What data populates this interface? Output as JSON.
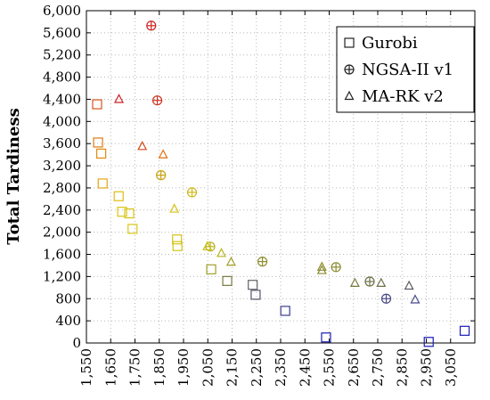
{
  "chart_data": {
    "type": "scatter",
    "title": "",
    "xlabel": "",
    "ylabel": "Total Tardiness",
    "xlim": [
      1550,
      3150
    ],
    "ylim": [
      0,
      6000
    ],
    "x_ticks": [
      1550,
      1650,
      1750,
      1850,
      1950,
      2050,
      2150,
      2250,
      2350,
      2450,
      2550,
      2650,
      2750,
      2850,
      2950,
      3050
    ],
    "y_ticks": [
      0,
      400,
      800,
      1200,
      1600,
      2000,
      2400,
      2800,
      3200,
      3600,
      4000,
      4400,
      4800,
      5200,
      5600,
      6000
    ],
    "x_tick_labels": [
      "1,550",
      "1,650",
      "1,750",
      "1,850",
      "1,950",
      "2,050",
      "2,150",
      "2,250",
      "2,350",
      "2,450",
      "2,550",
      "2,650",
      "2,750",
      "2,850",
      "2,950",
      "3,050"
    ],
    "y_tick_labels": [
      "0",
      "400",
      "800",
      "1,200",
      "1,600",
      "2,000",
      "2,400",
      "2,800",
      "3,200",
      "3,600",
      "4,000",
      "4,400",
      "4,800",
      "5,200",
      "5,600",
      "6,000"
    ],
    "grid": true,
    "legend": {
      "position": "top-right",
      "marker_color": "#222222"
    },
    "color_scale": [
      "#cc2222",
      "#e07a10",
      "#d8c410",
      "#8a8a28",
      "#555555",
      "#1a1ab8"
    ],
    "series": [
      {
        "name": "Gurobi",
        "marker": "square",
        "points": [
          {
            "x": 1594,
            "y": 4310,
            "color": "#d6541c"
          },
          {
            "x": 1598,
            "y": 3620,
            "color": "#e07a10"
          },
          {
            "x": 1611,
            "y": 3420,
            "color": "#e08a10"
          },
          {
            "x": 1617,
            "y": 2880,
            "color": "#e2a812"
          },
          {
            "x": 1683,
            "y": 2650,
            "color": "#e0bd14"
          },
          {
            "x": 1697,
            "y": 2370,
            "color": "#d8c410"
          },
          {
            "x": 1726,
            "y": 2340,
            "color": "#d8c412"
          },
          {
            "x": 1740,
            "y": 2060,
            "color": "#d8c814"
          },
          {
            "x": 1923,
            "y": 1870,
            "color": "#d4c416"
          },
          {
            "x": 1925,
            "y": 1750,
            "color": "#d2c218"
          },
          {
            "x": 2064,
            "y": 1330,
            "color": "#a0a028"
          },
          {
            "x": 2130,
            "y": 1120,
            "color": "#7a7a40"
          },
          {
            "x": 2235,
            "y": 1050,
            "color": "#666666"
          },
          {
            "x": 2247,
            "y": 870,
            "color": "#555570"
          },
          {
            "x": 2369,
            "y": 580,
            "color": "#3a3a90"
          },
          {
            "x": 2537,
            "y": 100,
            "color": "#1a1ab8"
          },
          {
            "x": 2960,
            "y": 20,
            "color": "#1a1ab8"
          },
          {
            "x": 3108,
            "y": 220,
            "color": "#1a1ab8"
          }
        ]
      },
      {
        "name": "NGSA-II v1",
        "marker": "circle-plus",
        "points": [
          {
            "x": 1817,
            "y": 5730,
            "color": "#cc2222"
          },
          {
            "x": 1842,
            "y": 4380,
            "color": "#cc3322"
          },
          {
            "x": 1857,
            "y": 3030,
            "color": "#c8a010"
          },
          {
            "x": 1985,
            "y": 2720,
            "color": "#d0b818"
          },
          {
            "x": 2060,
            "y": 1740,
            "color": "#b8b020"
          },
          {
            "x": 2275,
            "y": 1470,
            "color": "#8c8c30"
          },
          {
            "x": 2578,
            "y": 1370,
            "color": "#8a8a30"
          },
          {
            "x": 2717,
            "y": 1110,
            "color": "#707048"
          },
          {
            "x": 2785,
            "y": 800,
            "color": "#4a4a88"
          }
        ]
      },
      {
        "name": "MA-RK v2",
        "marker": "triangle",
        "points": [
          {
            "x": 1684,
            "y": 4400,
            "color": "#cc2222"
          },
          {
            "x": 1780,
            "y": 3550,
            "color": "#d84a1a"
          },
          {
            "x": 1866,
            "y": 3400,
            "color": "#e07010"
          },
          {
            "x": 1912,
            "y": 2420,
            "color": "#d8c410"
          },
          {
            "x": 2048,
            "y": 1740,
            "color": "#c8c014"
          },
          {
            "x": 2106,
            "y": 1620,
            "color": "#b8b41c"
          },
          {
            "x": 2146,
            "y": 1460,
            "color": "#a0a024"
          },
          {
            "x": 2520,
            "y": 1370,
            "color": "#8c8c2e"
          },
          {
            "x": 2520,
            "y": 1310,
            "color": "#8a8a30"
          },
          {
            "x": 2656,
            "y": 1080,
            "color": "#7a7a3a"
          },
          {
            "x": 2764,
            "y": 1080,
            "color": "#6e6e48"
          },
          {
            "x": 2879,
            "y": 1030,
            "color": "#5a5a60"
          },
          {
            "x": 2904,
            "y": 780,
            "color": "#4a4a90"
          }
        ]
      }
    ]
  }
}
